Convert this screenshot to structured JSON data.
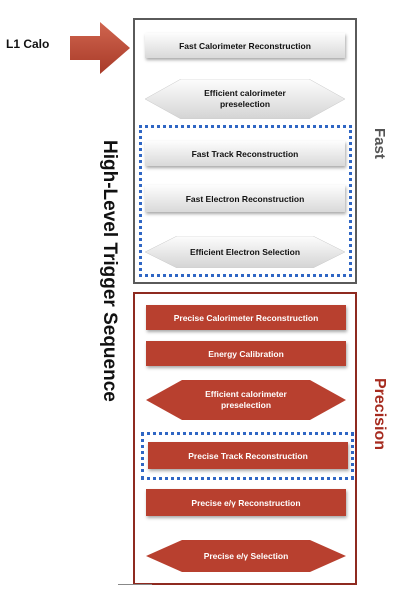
{
  "l1_label": "L1 Calo",
  "hlt_label": "High-Level Trigger Sequence",
  "fast_label": "Fast",
  "precision_label": "Precision",
  "fast_steps": {
    "calo_reco": "Fast Calorimeter Reconstruction",
    "calo_presel": "Efficient calorimeter\npreselection",
    "track_reco": "Fast Track Reconstruction",
    "electron_reco": "Fast Electron Reconstruction",
    "electron_sel": "Efficient Electron Selection"
  },
  "precision_steps": {
    "calo_reco": "Precise Calorimeter Reconstruction",
    "energy_cal": "Energy Calibration",
    "calo_presel": "Efficient calorimeter\npreselection",
    "track_reco": "Precise Track Reconstruction",
    "egamma_reco": "Precise e/γ Reconstruction",
    "egamma_sel": "Precise e/γ Selection"
  },
  "colors": {
    "red": "#b8402f",
    "dark_red": "#8e2a20",
    "blue_dotted": "#2f66c4",
    "grey_frame": "#5a5a5a"
  }
}
